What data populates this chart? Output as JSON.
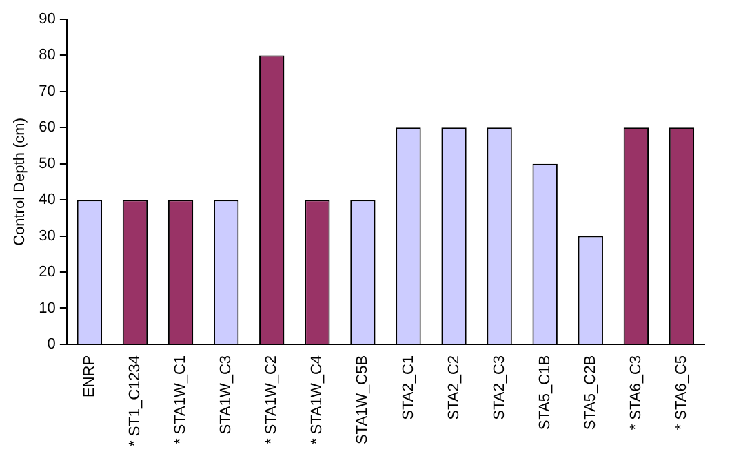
{
  "chart_data": {
    "type": "bar",
    "ylabel": "Control Depth (cm)",
    "categories": [
      "ENRP",
      "* ST1_C1234",
      "* STA1W_C1",
      "STA1W_C3",
      "* STA1W_C2",
      "* STA1W_C4",
      "STA1W_C5B",
      "STA2_C1",
      "STA2_C2",
      "STA2_C3",
      "STA5_C1B",
      "STA5_C2B",
      "* STA6_C3",
      "* STA6_C5"
    ],
    "values": [
      40,
      40,
      40,
      40,
      80,
      40,
      40,
      60,
      60,
      60,
      50,
      30,
      60,
      60
    ],
    "colors": [
      "#ccccff",
      "#993366",
      "#993366",
      "#ccccff",
      "#993366",
      "#993366",
      "#ccccff",
      "#ccccff",
      "#ccccff",
      "#ccccff",
      "#ccccff",
      "#ccccff",
      "#993366",
      "#993366"
    ],
    "ylim": [
      0,
      90
    ],
    "yticks": [
      0,
      10,
      20,
      30,
      40,
      50,
      60,
      70,
      80,
      90
    ],
    "grid": false,
    "legend": false
  }
}
